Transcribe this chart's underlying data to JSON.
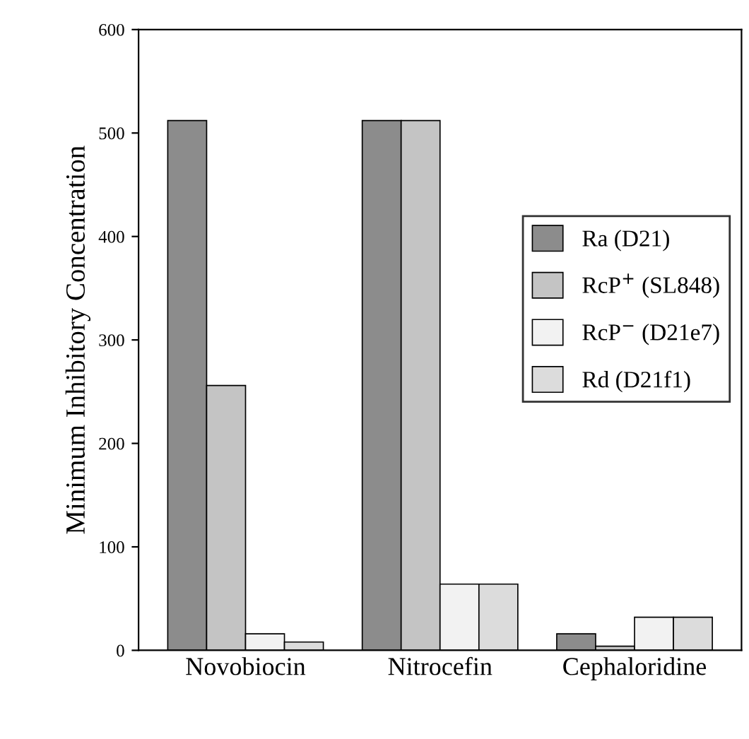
{
  "chart_data": {
    "type": "bar",
    "ylabel": "Minimum Inhibitory Concentration",
    "categories": [
      "Novobiocin",
      "Nitrocefin",
      "Cephaloridine"
    ],
    "series": [
      {
        "name": "Ra (D21)",
        "color": "#8c8c8c",
        "values": [
          512,
          512,
          16
        ]
      },
      {
        "name": "RcP$^{+}$ (SL848)",
        "color": "#c4c4c4",
        "values": [
          256,
          512,
          4
        ]
      },
      {
        "name": "RcP$^{−}$ (D21e7)",
        "color": "#f2f2f2",
        "values": [
          16,
          64,
          32
        ]
      },
      {
        "name": "Rd (D21f1)",
        "color": "#dcdcdc",
        "values": [
          8,
          64,
          32
        ]
      }
    ],
    "ylim": [
      0,
      600
    ],
    "yticks": [
      0,
      100,
      200,
      300,
      400,
      500,
      600
    ],
    "grid": false,
    "legend": "right"
  }
}
